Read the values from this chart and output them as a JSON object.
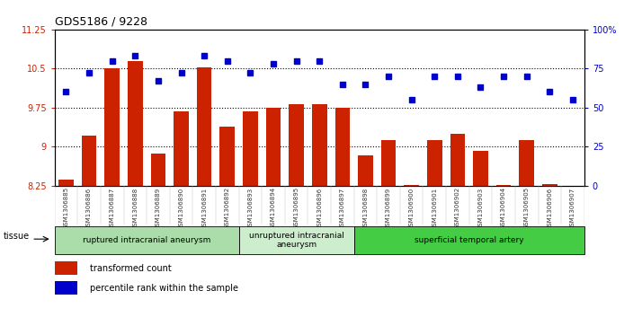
{
  "title": "GDS5186 / 9228",
  "samples": [
    "GSM1306885",
    "GSM1306886",
    "GSM1306887",
    "GSM1306888",
    "GSM1306889",
    "GSM1306890",
    "GSM1306891",
    "GSM1306892",
    "GSM1306893",
    "GSM1306894",
    "GSM1306895",
    "GSM1306896",
    "GSM1306897",
    "GSM1306898",
    "GSM1306899",
    "GSM1306900",
    "GSM1306901",
    "GSM1306902",
    "GSM1306903",
    "GSM1306904",
    "GSM1306905",
    "GSM1306906",
    "GSM1306907"
  ],
  "transformed_count": [
    8.37,
    9.22,
    10.5,
    10.65,
    8.87,
    9.68,
    10.52,
    9.38,
    9.67,
    9.75,
    9.82,
    9.82,
    9.75,
    8.83,
    9.12,
    8.27,
    9.12,
    9.25,
    8.92,
    8.27,
    9.12,
    8.28,
    8.25
  ],
  "percentile_rank": [
    60,
    72,
    80,
    83,
    67,
    72,
    83,
    80,
    72,
    78,
    80,
    80,
    65,
    65,
    70,
    55,
    70,
    70,
    63,
    70,
    70,
    60,
    55
  ],
  "ylim_left": [
    8.25,
    11.25
  ],
  "ylim_right": [
    0,
    100
  ],
  "yticks_left": [
    8.25,
    9.0,
    9.75,
    10.5,
    11.25
  ],
  "ytick_labels_left": [
    "8.25",
    "9",
    "9.75",
    "10.5",
    "11.25"
  ],
  "yticks_right": [
    0,
    25,
    50,
    75,
    100
  ],
  "ytick_labels_right": [
    "0",
    "25",
    "50",
    "75",
    "100%"
  ],
  "hlines": [
    9.0,
    9.75,
    10.5
  ],
  "bar_color": "#cc2200",
  "dot_color": "#0000cc",
  "bg_color": "#ffffff",
  "plot_bg_color": "#ffffff",
  "xtick_bg": "#d8d8d8",
  "groups": [
    {
      "label": "ruptured intracranial aneurysm",
      "start": 0,
      "end": 8,
      "color": "#aaddaa"
    },
    {
      "label": "unruptured intracranial\naneurysm",
      "start": 8,
      "end": 13,
      "color": "#cceecc"
    },
    {
      "label": "superficial temporal artery",
      "start": 13,
      "end": 23,
      "color": "#44cc44"
    }
  ],
  "tissue_label": "tissue",
  "legend_bar_label": "transformed count",
  "legend_dot_label": "percentile rank within the sample"
}
